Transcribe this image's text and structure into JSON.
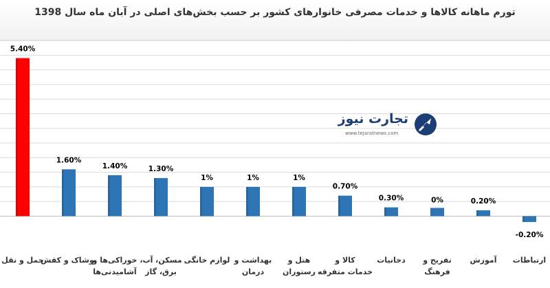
{
  "chart_data": {
    "type": "bar",
    "title": "تورم ماهانه کالاها و خدمات مصرفی خانوارهای کشور بر حسب بخش‌های اصلی در آبان ماه سال 1398",
    "categories": [
      "حمل و نقل",
      "پوشاک و کفش",
      "خوراکی‌ها و آشامیدنی‌ها",
      "مسکن، آب، برق، گاز",
      "لوازم خانگی",
      "بهداشت و درمان",
      "هتل و رستوران",
      "کالا و خدمات متفرقه",
      "دخانیات",
      "تفریح و فرهنگ",
      "آموزش",
      "ارتباطات"
    ],
    "values": [
      5.4,
      1.6,
      1.4,
      1.3,
      1.0,
      1.0,
      1.0,
      0.7,
      0.3,
      0.0,
      0.2,
      -0.2
    ],
    "data_labels": [
      "5.40%",
      "1.60%",
      "1.40%",
      "1.30%",
      "1%",
      "1%",
      "1%",
      "0.70%",
      "0.30%",
      "0%",
      "0.20%",
      "-0.20%"
    ],
    "highlight_index": 0,
    "ylim": [
      -0.6,
      6.0
    ],
    "grid": true,
    "colors": {
      "bar": "#2e75b6",
      "highlight": "#ff0000",
      "grid": "#d9d9d9"
    }
  },
  "watermark": {
    "name": "تجارت نیوز",
    "url": "www.tejaratnews.com",
    "icon": "tejaratnews-logo-icon"
  }
}
